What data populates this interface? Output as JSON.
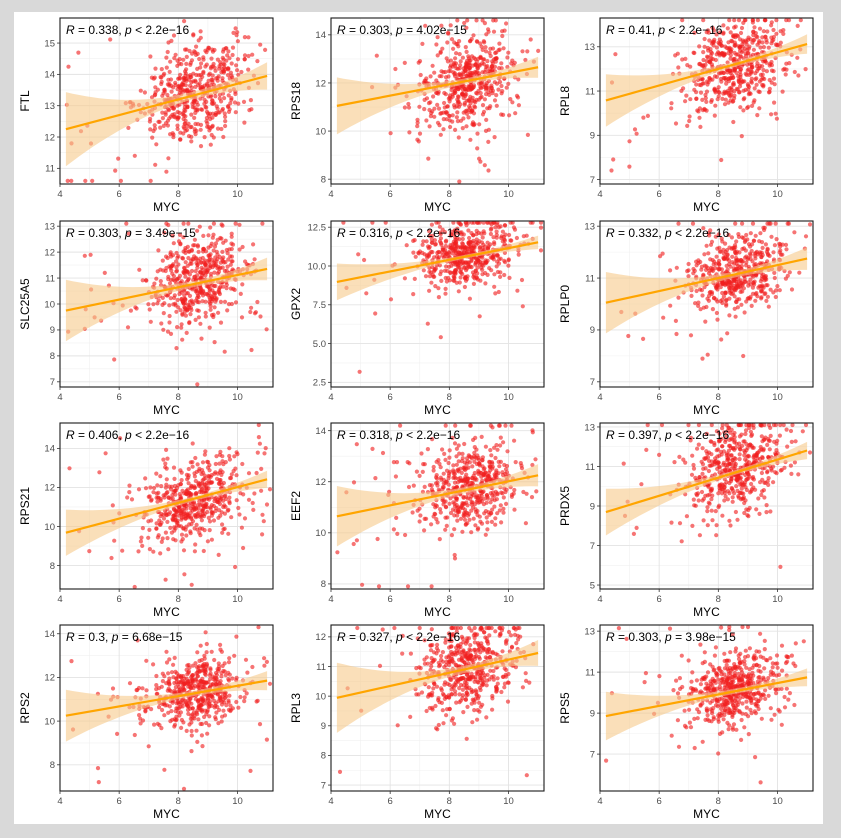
{
  "figure": {
    "point_color": "#f01e1e",
    "line_color": "#ffa500",
    "band_color": "#f6c98a",
    "x_label": "MYC"
  },
  "chart_data": [
    {
      "type": "scatter",
      "gene": "FTL",
      "xlabel": "MYC",
      "ylabel": "FTL",
      "xlim": [
        4,
        11.2
      ],
      "ylim": [
        10.5,
        15.8
      ],
      "xticks": [
        4,
        6,
        8,
        10
      ],
      "yticks": [
        11,
        12,
        13,
        14,
        15
      ],
      "r": "0.338",
      "p_op": "<",
      "p": "2.2e−16",
      "fit": [
        12.2,
        14.0
      ],
      "center": [
        8.6,
        13.4
      ],
      "spread": [
        0.85,
        0.75
      ]
    },
    {
      "type": "scatter",
      "gene": "RPS18",
      "xlabel": "MYC",
      "ylabel": "RPS18",
      "xlim": [
        4,
        11.2
      ],
      "ylim": [
        7.8,
        14.7
      ],
      "xticks": [
        4,
        6,
        8,
        10
      ],
      "yticks": [
        8,
        10,
        12,
        14
      ],
      "r": "0.303",
      "p_op": "=",
      "p": "4.02e−15",
      "fit": [
        11.0,
        12.7
      ],
      "center": [
        8.6,
        12.1
      ],
      "spread": [
        0.85,
        0.95
      ]
    },
    {
      "type": "scatter",
      "gene": "RPL8",
      "xlabel": "MYC",
      "ylabel": "RPL8",
      "xlim": [
        4,
        11.2
      ],
      "ylim": [
        6.8,
        14.3
      ],
      "xticks": [
        4,
        6,
        8,
        10
      ],
      "yticks": [
        7,
        9,
        11,
        13
      ],
      "r": "0.41",
      "p_op": "<",
      "p": "2.2e−16",
      "fit": [
        10.5,
        13.2
      ],
      "center": [
        8.6,
        12.1
      ],
      "spread": [
        0.85,
        1.0
      ]
    },
    {
      "type": "scatter",
      "gene": "SLC25A5",
      "xlabel": "MYC",
      "ylabel": "SLC25A5",
      "xlim": [
        4,
        11.2
      ],
      "ylim": [
        6.8,
        13.2
      ],
      "xticks": [
        4,
        6,
        8,
        10
      ],
      "yticks": [
        7,
        8,
        9,
        10,
        11,
        12,
        13
      ],
      "r": "0.303",
      "p_op": "=",
      "p": "3.49e−15",
      "fit": [
        9.7,
        11.4
      ],
      "center": [
        8.6,
        10.9
      ],
      "spread": [
        0.85,
        0.85
      ]
    },
    {
      "type": "scatter",
      "gene": "GPX2",
      "xlabel": "MYC",
      "ylabel": "GPX2",
      "xlim": [
        4,
        11.2
      ],
      "ylim": [
        2.2,
        12.9
      ],
      "xticks": [
        4,
        6,
        8,
        10
      ],
      "yticks": [
        2.5,
        5.0,
        7.5,
        10.0,
        12.5
      ],
      "ytick_labels": [
        "2.5",
        "5.0",
        "7.5",
        "10.0",
        "12.5"
      ],
      "r": "0.316",
      "p_op": "<",
      "p": "2.2e−16",
      "fit": [
        8.9,
        11.6
      ],
      "center": [
        8.6,
        10.8
      ],
      "spread": [
        0.85,
        1.1
      ]
    },
    {
      "type": "scatter",
      "gene": "RPLP0",
      "xlabel": "MYC",
      "ylabel": "RPLP0",
      "xlim": [
        4,
        11.2
      ],
      "ylim": [
        6.8,
        13.2
      ],
      "xticks": [
        4,
        6,
        8,
        10
      ],
      "yticks": [
        7,
        9,
        11,
        13
      ],
      "r": "0.332",
      "p_op": "<",
      "p": "2.2e−16",
      "fit": [
        10.0,
        11.8
      ],
      "center": [
        8.6,
        11.2
      ],
      "spread": [
        0.85,
        0.75
      ]
    },
    {
      "type": "scatter",
      "gene": "RPS21",
      "xlabel": "MYC",
      "ylabel": "RPS21",
      "xlim": [
        4,
        11.2
      ],
      "ylim": [
        6.8,
        15.3
      ],
      "xticks": [
        4,
        6,
        8,
        10
      ],
      "yticks": [
        8,
        10,
        12,
        14
      ],
      "r": "0.406",
      "p_op": "<",
      "p": "2.2e−16",
      "fit": [
        9.6,
        12.5
      ],
      "center": [
        8.6,
        11.4
      ],
      "spread": [
        0.85,
        1.05
      ]
    },
    {
      "type": "scatter",
      "gene": "EEF2",
      "xlabel": "MYC",
      "ylabel": "EEF2",
      "xlim": [
        4,
        11.2
      ],
      "ylim": [
        7.8,
        14.3
      ],
      "xticks": [
        4,
        6,
        8,
        10
      ],
      "yticks": [
        8,
        10,
        12,
        14
      ],
      "r": "0.318",
      "p_op": "<",
      "p": "2.2e−16",
      "fit": [
        10.6,
        12.3
      ],
      "center": [
        8.6,
        11.8
      ],
      "spread": [
        0.85,
        0.85
      ]
    },
    {
      "type": "scatter",
      "gene": "PRDX5",
      "xlabel": "MYC",
      "ylabel": "PRDX5",
      "xlim": [
        4,
        11.2
      ],
      "ylim": [
        4.8,
        13.2
      ],
      "xticks": [
        4,
        6,
        8,
        10
      ],
      "yticks": [
        5,
        7,
        9,
        11,
        13
      ],
      "r": "0.397",
      "p_op": "<",
      "p": "2.2e−16",
      "fit": [
        8.6,
        11.9
      ],
      "center": [
        8.6,
        10.9
      ],
      "spread": [
        0.85,
        1.1
      ]
    },
    {
      "type": "scatter",
      "gene": "RPS2",
      "xlabel": "MYC",
      "ylabel": "RPS2",
      "xlim": [
        4,
        11.2
      ],
      "ylim": [
        6.8,
        14.4
      ],
      "xticks": [
        4,
        6,
        8,
        10
      ],
      "yticks": [
        8,
        10,
        12,
        14
      ],
      "r": "0.3",
      "p_op": "=",
      "p": "6.68e−15",
      "fit": [
        10.2,
        11.9
      ],
      "center": [
        8.6,
        11.3
      ],
      "spread": [
        0.85,
        0.8
      ]
    },
    {
      "type": "scatter",
      "gene": "RPL3",
      "xlabel": "MYC",
      "ylabel": "RPL3",
      "xlim": [
        4,
        11.2
      ],
      "ylim": [
        6.8,
        12.4
      ],
      "xticks": [
        4,
        6,
        8,
        10
      ],
      "yticks": [
        7,
        8,
        9,
        10,
        11,
        12
      ],
      "r": "0.327",
      "p_op": "<",
      "p": "2.2e−16",
      "fit": [
        9.9,
        11.5
      ],
      "center": [
        8.6,
        10.9
      ],
      "spread": [
        0.85,
        0.75
      ]
    },
    {
      "type": "scatter",
      "gene": "RPS5",
      "xlabel": "MYC",
      "ylabel": "RPS5",
      "xlim": [
        4,
        11.2
      ],
      "ylim": [
        5.2,
        13.3
      ],
      "xticks": [
        4,
        6,
        8,
        10
      ],
      "yticks": [
        7,
        9,
        11,
        13
      ],
      "r": "0.303",
      "p_op": "=",
      "p": "3.98e−15",
      "fit": [
        8.8,
        10.8
      ],
      "center": [
        8.6,
        10.2
      ],
      "spread": [
        0.85,
        0.9
      ]
    }
  ]
}
